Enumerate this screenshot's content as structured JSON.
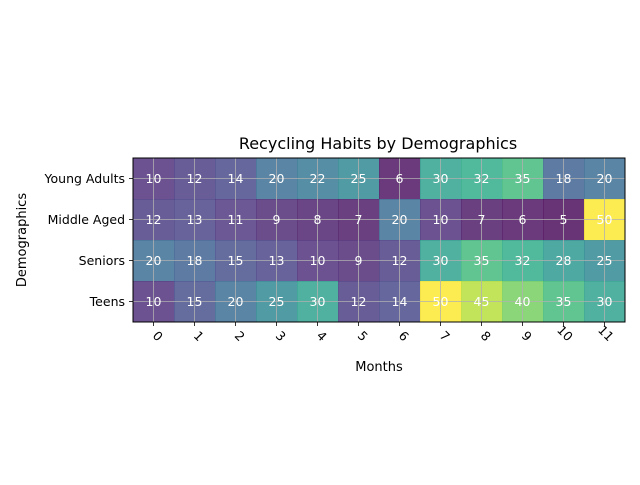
{
  "chart_data": {
    "type": "heatmap",
    "title": "Recycling Habits by Demographics",
    "xlabel": "Months",
    "ylabel": "Demographics",
    "x_categories": [
      "0",
      "1",
      "2",
      "3",
      "4",
      "5",
      "6",
      "7",
      "8",
      "9",
      "10",
      "11"
    ],
    "y_categories": [
      "Young Adults",
      "Middle Aged",
      "Seniors",
      "Teens"
    ],
    "values": [
      [
        10,
        12,
        14,
        20,
        22,
        25,
        6,
        30,
        32,
        35,
        18,
        20
      ],
      [
        12,
        13,
        11,
        9,
        8,
        7,
        20,
        10,
        7,
        6,
        5,
        50
      ],
      [
        20,
        18,
        15,
        13,
        10,
        9,
        12,
        30,
        35,
        32,
        28,
        25
      ],
      [
        10,
        15,
        20,
        25,
        30,
        12,
        14,
        50,
        45,
        40,
        35,
        30
      ]
    ],
    "colormap": "viridis",
    "cell_opacity": 0.8,
    "vmin": 5,
    "vmax": 50,
    "grid": true,
    "cell_annotations": true,
    "x_tick_rotation_deg": 45
  }
}
